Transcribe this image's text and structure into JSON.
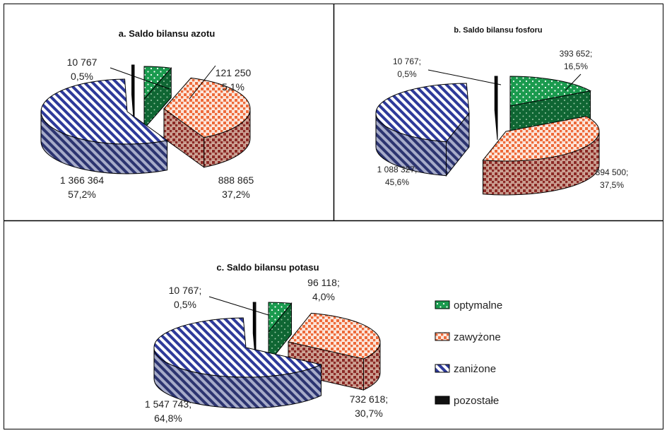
{
  "chart_data": [
    {
      "type": "pie",
      "title": "a. Saldo bilansu azotu",
      "slices": [
        {
          "category": "optymalne",
          "value": 121250,
          "value_text": "121 250",
          "percent_text": "5,1%"
        },
        {
          "category": "zawyżone",
          "value": 888865,
          "value_text": "888 865",
          "percent_text": "37,2%"
        },
        {
          "category": "zaniżone",
          "value": 1366364,
          "value_text": "1 366 364",
          "percent_text": "57,2%"
        },
        {
          "category": "pozostałe",
          "value": 10767,
          "value_text": "10 767",
          "percent_text": "0,5%"
        }
      ]
    },
    {
      "type": "pie",
      "title": "b. Saldo bilansu fosforu",
      "slices": [
        {
          "category": "optymalne",
          "value": 393652,
          "value_text": "393 652;",
          "percent_text": "16,5%"
        },
        {
          "category": "zawyżone",
          "value": 894500,
          "value_text": "894 500;",
          "percent_text": "37,5%"
        },
        {
          "category": "zaniżone",
          "value": 1088327,
          "value_text": "1 088 327;",
          "percent_text": "45,6%"
        },
        {
          "category": "pozostałe",
          "value": 10767,
          "value_text": "10 767;",
          "percent_text": "0,5%"
        }
      ]
    },
    {
      "type": "pie",
      "title": "c. Saldo bilansu potasu",
      "slices": [
        {
          "category": "optymalne",
          "value": 96118,
          "value_text": "96 118;",
          "percent_text": "4,0%"
        },
        {
          "category": "zawyżone",
          "value": 732618,
          "value_text": "732 618;",
          "percent_text": "30,7%"
        },
        {
          "category": "zaniżone",
          "value": 1547743,
          "value_text": "1 547 743;",
          "percent_text": "64,8%"
        },
        {
          "category": "pozostałe",
          "value": 10767,
          "value_text": "10 767;",
          "percent_text": "0,5%"
        }
      ]
    }
  ],
  "legend": {
    "placement": "right",
    "items": [
      {
        "label": "optymalne",
        "color": "#1a9a4e",
        "pattern": "dots"
      },
      {
        "label": "zawyżone",
        "color": "#ee6a3a",
        "pattern": "checker"
      },
      {
        "label": "zaniżone",
        "color": "#2e3a9a",
        "pattern": "diagonal-stripes"
      },
      {
        "label": "pozostałe",
        "color": "#111111",
        "pattern": "solid"
      }
    ]
  },
  "colors": {
    "optymalne": "#1a9a4e",
    "zawyżone": "#ee6a3a",
    "zaniżone": "#2e3a9a",
    "pozostałe": "#111111"
  }
}
